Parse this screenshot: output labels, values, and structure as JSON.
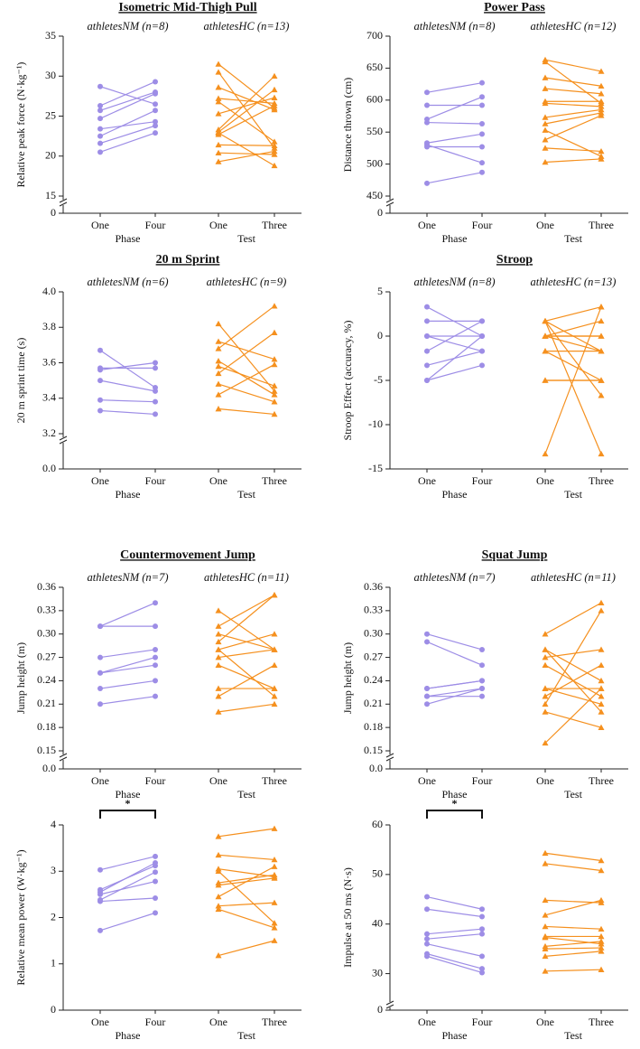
{
  "chart_data": [
    {
      "type": "paired",
      "title": "Isometric Mid-Thigh Pull",
      "ylabel": "Relative peak force (N·kg⁻¹)",
      "ylim": [
        15,
        35
      ],
      "yticks": [
        15,
        20,
        25,
        30,
        35
      ],
      "break_tick": 0,
      "groups": [
        {
          "name": "athletesNM  (n=8)",
          "axis_label": "Phase",
          "categories": [
            "One",
            "Four"
          ],
          "color": "#9d8de6",
          "marker": "circle",
          "values": [
            [
              28.7,
              26.5
            ],
            [
              26.3,
              29.3
            ],
            [
              25.7,
              28.0
            ],
            [
              24.7,
              27.8
            ],
            [
              23.4,
              24.3
            ],
            [
              22.5,
              25.7
            ],
            [
              21.6,
              23.8
            ],
            [
              20.5,
              22.9
            ]
          ]
        },
        {
          "name": "athletesHC  (n=13)",
          "axis_label": "Test",
          "categories": [
            "One",
            "Three"
          ],
          "color": "#f5901e",
          "marker": "triangle",
          "values": [
            [
              31.5,
              26.0
            ],
            [
              30.5,
              21.0
            ],
            [
              28.6,
              25.8
            ],
            [
              27.2,
              26.6
            ],
            [
              26.8,
              21.8
            ],
            [
              25.3,
              27.3
            ],
            [
              23.3,
              30.0
            ],
            [
              23.0,
              28.3
            ],
            [
              22.7,
              26.3
            ],
            [
              21.4,
              21.3
            ],
            [
              20.4,
              20.2
            ],
            [
              19.3,
              20.6
            ],
            [
              22.9,
              18.8
            ]
          ]
        }
      ]
    },
    {
      "type": "paired",
      "title": "Power Pass",
      "ylabel": "Distance thrown (cm)",
      "ylim": [
        450,
        700
      ],
      "yticks": [
        450,
        500,
        550,
        600,
        650,
        700
      ],
      "break_tick": 0,
      "groups": [
        {
          "name": "athletesNM  (n=8)",
          "axis_label": "Phase",
          "categories": [
            "One",
            "Four"
          ],
          "color": "#9d8de6",
          "marker": "circle",
          "values": [
            [
              612,
              627
            ],
            [
              592,
              592
            ],
            [
              570,
              605
            ],
            [
              565,
              563
            ],
            [
              533,
              547
            ],
            [
              530,
              502
            ],
            [
              527,
              527
            ],
            [
              470,
              487
            ]
          ]
        },
        {
          "name": "athletesHC  (n=12)",
          "axis_label": "Test",
          "categories": [
            "One",
            "Three"
          ],
          "color": "#f5901e",
          "marker": "triangle",
          "values": [
            [
              663,
              645
            ],
            [
              660,
              595
            ],
            [
              635,
              622
            ],
            [
              618,
              610
            ],
            [
              598,
              598
            ],
            [
              595,
              590
            ],
            [
              573,
              585
            ],
            [
              563,
              580
            ],
            [
              553,
              512
            ],
            [
              538,
              576
            ],
            [
              525,
              520
            ],
            [
              503,
              508
            ]
          ]
        }
      ]
    },
    {
      "type": "paired",
      "title": "20 m Sprint",
      "ylabel": "20 m sprint time  (s)",
      "ylim": [
        3.2,
        4.0
      ],
      "yticks": [
        3.2,
        3.4,
        3.6,
        3.8,
        {
          "value": 4.0,
          "label": "4.0"
        }
      ],
      "break_tick": {
        "value": 0,
        "label": "0.0"
      },
      "groups": [
        {
          "name": "athletesNM  (n=6)",
          "axis_label": "Phase",
          "categories": [
            "One",
            "Four"
          ],
          "color": "#9d8de6",
          "marker": "circle",
          "values": [
            [
              3.67,
              3.46
            ],
            [
              3.57,
              3.57
            ],
            [
              3.56,
              3.6
            ],
            [
              3.5,
              3.44
            ],
            [
              3.39,
              3.38
            ],
            [
              3.33,
              3.31
            ]
          ]
        },
        {
          "name": "athletesHC  (n=9)",
          "axis_label": "Test",
          "categories": [
            "One",
            "Three"
          ],
          "color": "#f5901e",
          "marker": "triangle",
          "values": [
            [
              3.82,
              3.44
            ],
            [
              3.72,
              3.62
            ],
            [
              3.68,
              3.92
            ],
            [
              3.61,
              3.42
            ],
            [
              3.58,
              3.47
            ],
            [
              3.54,
              3.77
            ],
            [
              3.48,
              3.38
            ],
            [
              3.42,
              3.59
            ],
            [
              3.34,
              3.31
            ]
          ]
        }
      ]
    },
    {
      "type": "paired",
      "title": "Stroop",
      "ylabel": "Stroop Effect (accuracy, %)",
      "ylim": [
        -15,
        5
      ],
      "yticks": [
        -15,
        -10,
        -5,
        0,
        5
      ],
      "groups": [
        {
          "name": "athletesNM  (n=8)",
          "axis_label": "Phase",
          "categories": [
            "One",
            "Four"
          ],
          "color": "#9d8de6",
          "marker": "circle",
          "values": [
            [
              3.3,
              0
            ],
            [
              1.7,
              1.7
            ],
            [
              0,
              -1.7
            ],
            [
              0,
              0
            ],
            [
              -1.7,
              1.7
            ],
            [
              -3.3,
              -1.7
            ],
            [
              -5,
              0
            ],
            [
              -5,
              -3.3
            ]
          ]
        },
        {
          "name": "athletesHC  (n=13)",
          "axis_label": "Test",
          "categories": [
            "One",
            "Three"
          ],
          "color": "#f5901e",
          "marker": "triangle",
          "values": [
            [
              1.7,
              -13.3
            ],
            [
              1.7,
              3.3
            ],
            [
              1.7,
              -1.7
            ],
            [
              0,
              1.7
            ],
            [
              0,
              0
            ],
            [
              0,
              -1.7
            ],
            [
              -1.7,
              -1.7
            ],
            [
              -1.7,
              -5
            ],
            [
              -5,
              -5
            ],
            [
              -5,
              -5
            ],
            [
              -13.3,
              3.3
            ],
            [
              1.7,
              -6.7
            ],
            [
              0,
              0
            ]
          ]
        }
      ]
    },
    {
      "type": "paired",
      "title": "Countermovement Jump",
      "ylabel": "Jump height  (m)",
      "ylim": [
        0.15,
        0.36
      ],
      "yticks": [
        0.15,
        0.18,
        0.21,
        0.24,
        0.27,
        {
          "value": 0.3,
          "label": "0.30"
        },
        0.33,
        0.36
      ],
      "break_tick": {
        "value": 0,
        "label": "0.0"
      },
      "groups": [
        {
          "name": "athletesNM  (n=7)",
          "axis_label": "Phase",
          "categories": [
            "One",
            "Four"
          ],
          "color": "#9d8de6",
          "marker": "circle",
          "values": [
            [
              0.31,
              0.31
            ],
            [
              0.31,
              0.34
            ],
            [
              0.27,
              0.28
            ],
            [
              0.25,
              0.27
            ],
            [
              0.25,
              0.26
            ],
            [
              0.23,
              0.24
            ],
            [
              0.21,
              0.22
            ]
          ]
        },
        {
          "name": "athletesHC  (n=11)",
          "axis_label": "Test",
          "categories": [
            "One",
            "Three"
          ],
          "color": "#f5901e",
          "marker": "triangle",
          "values": [
            [
              0.33,
              0.28
            ],
            [
              0.31,
              0.35
            ],
            [
              0.3,
              0.28
            ],
            [
              0.29,
              0.35
            ],
            [
              0.28,
              0.22
            ],
            [
              0.28,
              0.3
            ],
            [
              0.26,
              0.23
            ],
            [
              0.23,
              0.23
            ],
            [
              0.22,
              0.26
            ],
            [
              0.2,
              0.21
            ],
            [
              0.27,
              0.28
            ]
          ]
        }
      ]
    },
    {
      "type": "paired",
      "title": "Squat Jump",
      "ylabel": "Jump height (m)",
      "ylim": [
        0.15,
        0.36
      ],
      "yticks": [
        0.15,
        0.18,
        0.21,
        0.24,
        0.27,
        {
          "value": 0.3,
          "label": "0.30"
        },
        0.33,
        0.36
      ],
      "break_tick": {
        "value": 0,
        "label": "0.0"
      },
      "groups": [
        {
          "name": "athletesNM  (n=7)",
          "axis_label": "Phase",
          "categories": [
            "One",
            "Four"
          ],
          "color": "#9d8de6",
          "marker": "circle",
          "values": [
            [
              0.3,
              0.28
            ],
            [
              0.29,
              0.26
            ],
            [
              0.23,
              0.24
            ],
            [
              0.23,
              0.24
            ],
            [
              0.22,
              0.23
            ],
            [
              0.22,
              0.22
            ],
            [
              0.21,
              0.23
            ]
          ]
        },
        {
          "name": "athletesHC  (n=11)",
          "axis_label": "Test",
          "categories": [
            "One",
            "Three"
          ],
          "color": "#f5901e",
          "marker": "triangle",
          "values": [
            [
              0.3,
              0.34
            ],
            [
              0.28,
              0.2
            ],
            [
              0.28,
              0.24
            ],
            [
              0.27,
              0.28
            ],
            [
              0.26,
              0.22
            ],
            [
              0.23,
              0.23
            ],
            [
              0.23,
              0.21
            ],
            [
              0.22,
              0.26
            ],
            [
              0.21,
              0.33
            ],
            [
              0.2,
              0.18
            ],
            [
              0.16,
              0.23
            ]
          ]
        }
      ]
    },
    {
      "type": "paired",
      "ylabel": "Relative mean power (W·kg⁻¹)",
      "significance": "*",
      "ylim": [
        0,
        4
      ],
      "yticks": [
        0,
        1,
        2,
        3,
        4
      ],
      "groups": [
        {
          "axis_label": "Phase",
          "categories": [
            "One",
            "Four"
          ],
          "color": "#9d8de6",
          "marker": "circle",
          "values": [
            [
              3.03,
              3.32
            ],
            [
              2.6,
              3.12
            ],
            [
              2.55,
              3.18
            ],
            [
              2.5,
              2.78
            ],
            [
              2.38,
              2.98
            ],
            [
              2.35,
              2.42
            ],
            [
              1.72,
              2.1
            ]
          ]
        },
        {
          "axis_label": "Test",
          "categories": [
            "One",
            "Three"
          ],
          "color": "#f5901e",
          "marker": "triangle",
          "values": [
            [
              3.75,
              3.92
            ],
            [
              3.35,
              3.25
            ],
            [
              3.05,
              2.88
            ],
            [
              3.0,
              1.88
            ],
            [
              2.75,
              2.92
            ],
            [
              2.7,
              2.85
            ],
            [
              2.45,
              3.1
            ],
            [
              2.25,
              2.32
            ],
            [
              2.18,
              1.78
            ],
            [
              1.18,
              1.5
            ]
          ]
        }
      ]
    },
    {
      "type": "paired",
      "ylabel": "Impulse at 50 ms (N·s)",
      "significance": "*",
      "ylim": [
        25,
        60
      ],
      "yticks": [
        30,
        40,
        50,
        60
      ],
      "break_tick": 0,
      "groups": [
        {
          "axis_label": "Phase",
          "categories": [
            "One",
            "Four"
          ],
          "color": "#9d8de6",
          "marker": "circle",
          "values": [
            [
              45.5,
              43.0
            ],
            [
              43.0,
              41.5
            ],
            [
              38.0,
              39.0
            ],
            [
              37.0,
              38.0
            ],
            [
              36.0,
              33.5
            ],
            [
              34.0,
              31.0
            ],
            [
              33.5,
              30.2
            ]
          ]
        },
        {
          "axis_label": "Test",
          "categories": [
            "One",
            "Three"
          ],
          "color": "#f5901e",
          "marker": "triangle",
          "values": [
            [
              54.3,
              52.8
            ],
            [
              52.2,
              50.8
            ],
            [
              44.8,
              44.3
            ],
            [
              41.8,
              44.8
            ],
            [
              39.5,
              39.0
            ],
            [
              37.5,
              37.5
            ],
            [
              37.3,
              36.0
            ],
            [
              35.5,
              36.5
            ],
            [
              35.0,
              35.2
            ],
            [
              33.5,
              34.5
            ],
            [
              30.5,
              30.8
            ]
          ]
        }
      ]
    }
  ]
}
